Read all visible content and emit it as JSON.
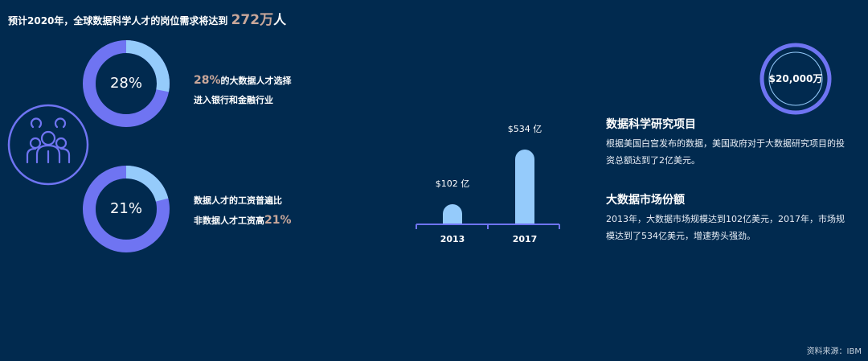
{
  "headline": {
    "prefix": "预计2020年，全球数据科学人才的岗位需求将达到 ",
    "number": "272万",
    "unit": "人"
  },
  "stats": [
    {
      "percent_label": "28%",
      "fraction": 0.28,
      "line1_highlight": "28%",
      "line1_rest": "的大数据人才选择",
      "line2": "进入银行和金融行业"
    },
    {
      "percent_label": "21%",
      "fraction": 0.21,
      "line1": "数据人才的工资普遍比",
      "line2_rest": "非数据人才工资高",
      "line2_highlight": "21%"
    }
  ],
  "icons": {
    "people": "people-group-icon"
  },
  "colors": {
    "background": "#012a4f",
    "ring_main": "#6f74f2",
    "ring_light": "#95cbfb",
    "accent_text": "#c9a79a",
    "bar": "#95cbfb",
    "axis": "#6f74f2"
  },
  "chart_data": {
    "type": "bar",
    "categories": [
      "2013",
      "2017"
    ],
    "values": [
      102,
      534
    ],
    "data_labels": [
      "$102 亿",
      "$534 亿"
    ],
    "title": "",
    "xlabel": "",
    "ylabel": "",
    "ylim": [
      0,
      534
    ],
    "grid": false
  },
  "budget": {
    "label": "$20,000万"
  },
  "sections": [
    {
      "title": "数据科学研究项目",
      "body": "根据美国白宫发布的数据，美国政府对于大数据研究项目的投资总额达到了2亿美元。"
    },
    {
      "title": "大数据市场份额",
      "body": "2013年，大数据市场规模达到102亿美元，2017年，市场规模达到了534亿美元，增速势头强劲。"
    }
  ],
  "source": "资料来源：IBM"
}
